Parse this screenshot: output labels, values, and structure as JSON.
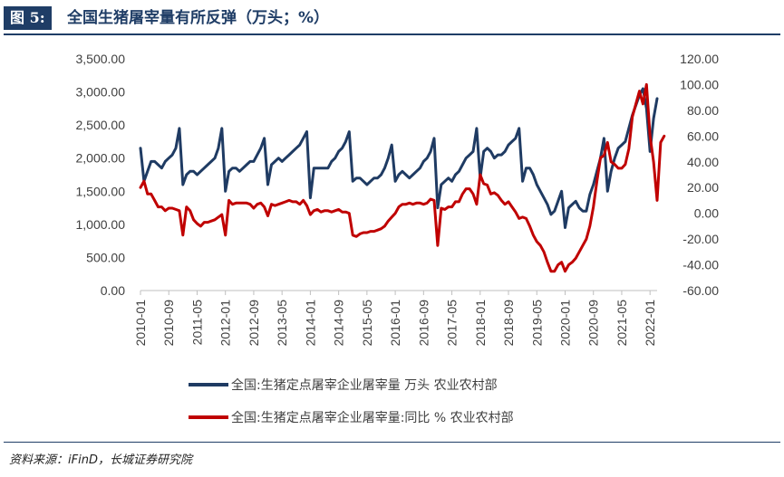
{
  "figure_label": "图 5:",
  "figure_title": "全国生猪屠宰量有所反弹（万头；%）",
  "source": "资料来源：iFinD，长城证券研究院",
  "colors": {
    "volume": "#1f3b63",
    "yoy": "#c00000",
    "axis": "#bfbfbf",
    "text": "#404040"
  },
  "chart_data": {
    "type": "line",
    "title": "全国生猪屠宰量有所反弹（万头；%）",
    "xlabel": "",
    "ylabel_left": "",
    "ylabel_right": "",
    "x_start": "2010-01",
    "x_end": "2022-03",
    "x_tick_labels": [
      "2010-01",
      "2010-09",
      "2011-05",
      "2012-01",
      "2012-09",
      "2013-05",
      "2014-01",
      "2014-09",
      "2015-05",
      "2016-01",
      "2016-09",
      "2017-05",
      "2018-01",
      "2018-09",
      "2019-05",
      "2020-01",
      "2020-09",
      "2021-05",
      "2022-01"
    ],
    "y_left": {
      "min": 0,
      "max": 3500,
      "step": 500,
      "tick_labels": [
        "0.00",
        "500.00",
        "1,000.00",
        "1,500.00",
        "2,000.00",
        "2,500.00",
        "3,000.00",
        "3,500.00"
      ]
    },
    "y_right": {
      "min": -60,
      "max": 120,
      "step": 20,
      "tick_labels": [
        "-60.00",
        "-40.00",
        "-20.00",
        "0.00",
        "20.00",
        "40.00",
        "60.00",
        "80.00",
        "100.00",
        "120.00"
      ]
    },
    "grid": false,
    "legend_position": "bottom",
    "series": [
      {
        "name": "全国:生猪定点屠宰企业屠宰量 万头 农业农村部",
        "axis": "left",
        "values": [
          2150,
          1650,
          1800,
          1950,
          1950,
          1900,
          1850,
          1950,
          2000,
          2050,
          2150,
          2450,
          1600,
          1750,
          1800,
          1800,
          1750,
          1800,
          1850,
          1900,
          1950,
          2000,
          2150,
          2450,
          1500,
          1800,
          1850,
          1850,
          1800,
          1850,
          1900,
          1950,
          1950,
          2050,
          2150,
          2300,
          1600,
          1900,
          1950,
          2000,
          1950,
          2000,
          2050,
          2100,
          2150,
          2200,
          2300,
          2400,
          1400,
          1850,
          1850,
          1850,
          1850,
          1850,
          1950,
          2000,
          2100,
          2150,
          2250,
          2400,
          1650,
          1700,
          1700,
          1650,
          1600,
          1650,
          1700,
          1700,
          1750,
          1850,
          2000,
          2200,
          1650,
          1750,
          1800,
          1750,
          1700,
          1750,
          1800,
          1850,
          1950,
          2000,
          2100,
          2300,
          1250,
          1600,
          1650,
          1700,
          1650,
          1750,
          1800,
          1900,
          2000,
          2050,
          2100,
          2450,
          1700,
          2100,
          2150,
          2100,
          2000,
          2050,
          2050,
          2100,
          2200,
          2250,
          2300,
          2450,
          1650,
          1850,
          1850,
          1750,
          1600,
          1500,
          1400,
          1300,
          1150,
          1200,
          1350,
          1500,
          950,
          1250,
          1300,
          1350,
          1250,
          1200,
          1200,
          1450,
          1600,
          1800,
          2000,
          2300,
          1500,
          1800,
          2000,
          2150,
          2200,
          2250,
          2450,
          2650,
          2800,
          2950,
          3050,
          2750,
          2100,
          2600,
          2900
        ]
      },
      {
        "name": "全国:生猪定点屠宰企业屠宰量:同比 % 农业农村部",
        "axis": "right",
        "values": [
          20,
          25,
          15,
          15,
          10,
          5,
          5,
          2,
          4,
          4,
          3,
          2,
          -17,
          5,
          2,
          -5,
          -8,
          -10,
          -7,
          -7,
          -6,
          -5,
          -3,
          -1,
          -17,
          10,
          7,
          8,
          8,
          8,
          8,
          7,
          4,
          7,
          8,
          5,
          -2,
          7,
          6,
          7,
          8,
          9,
          10,
          9,
          9,
          7,
          10,
          6,
          -1,
          2,
          3,
          1,
          2,
          2,
          1,
          2,
          3,
          1,
          1,
          0,
          -17,
          -18,
          -16,
          -15,
          -15,
          -14,
          -14,
          -13,
          -12,
          -10,
          -6,
          -3,
          0,
          5,
          7,
          7,
          8,
          7,
          8,
          8,
          7,
          8,
          11,
          10,
          -25,
          4,
          3,
          5,
          5,
          9,
          9,
          15,
          19,
          19,
          15,
          7,
          30,
          23,
          22,
          15,
          16,
          14,
          10,
          7,
          9,
          5,
          1,
          -4,
          -3,
          -4,
          -10,
          -17,
          -22,
          -25,
          -30,
          -38,
          -45,
          -45,
          -40,
          -38,
          -45,
          -40,
          -38,
          -35,
          -30,
          -25,
          -20,
          -10,
          5,
          25,
          43,
          45,
          55,
          40,
          38,
          35,
          35,
          38,
          50,
          75,
          85,
          95,
          85,
          100,
          60,
          40,
          10,
          55,
          60
        ]
      }
    ]
  }
}
